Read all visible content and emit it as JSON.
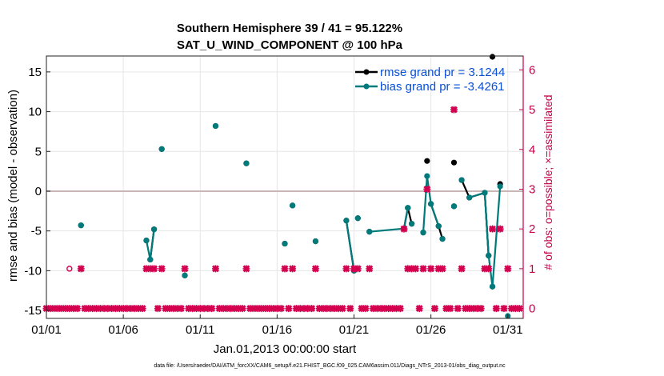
{
  "chart_data": {
    "type": "line",
    "title": "Southern Hemisphere 39 / 41 = 95.122%",
    "subtitle": "SAT_U_WIND_COMPONENT @ 100 hPa",
    "xlabel": "Jan.01,2013 00:00:00 start",
    "ylabel": "rmse and bias (model - observation)",
    "y2label": "# of obs: o=possible; ×=assimilated",
    "footnote": "data file: /Users/raeder/DAI/ATM_forcXX/CAM6_setup/f.e21.FHIST_BGC.f09_025.CAM6assim.011/Diags_NTrS_2013-01/obs_diag_output.nc",
    "xlim": [
      1,
      32
    ],
    "ylim": [
      -16,
      17
    ],
    "y2lim": [
      -0.25,
      6.35
    ],
    "x_ticks": [
      1,
      6,
      11,
      16,
      21,
      26,
      31
    ],
    "x_tick_labels": [
      "01/01",
      "01/06",
      "01/11",
      "01/16",
      "01/21",
      "01/26",
      "01/31"
    ],
    "y_ticks": [
      -15,
      -10,
      -5,
      0,
      5,
      10,
      15
    ],
    "y_tick_labels": [
      "-15",
      "-10",
      "-5",
      "0",
      "5",
      "10",
      "15"
    ],
    "y2_ticks": [
      0,
      1,
      2,
      3,
      4,
      5,
      6
    ],
    "y2_tick_labels": [
      "0",
      "1",
      "2",
      "3",
      "4",
      "5",
      "6"
    ],
    "zero_line": 0,
    "colors": {
      "rmse": "#000000",
      "bias": "#007a7a",
      "obs": "#d4004f",
      "right_axis": "#c4004a",
      "legend_text": "#0a4fd6",
      "zero_line": "#c9b7b7"
    },
    "series": [
      {
        "name": "rmse",
        "legend": "rmse grand pr = 3.1244",
        "points": [
          [
            3.25,
            -4.3
          ],
          [
            7.5,
            -6.2
          ],
          [
            7.75,
            -8.6
          ],
          [
            8.0,
            -4.8
          ],
          [
            8.5,
            5.3
          ],
          [
            10.0,
            -10.6
          ],
          [
            12.0,
            8.2
          ],
          [
            14.0,
            3.5
          ],
          [
            16.5,
            -6.6
          ],
          [
            17.0,
            -1.8
          ],
          [
            18.5,
            -6.3
          ],
          [
            20.5,
            -3.7
          ],
          [
            21.0,
            -10.0
          ],
          [
            21.25,
            -3.4
          ],
          [
            22.0,
            -5.1
          ],
          [
            24.25,
            -4.7
          ],
          [
            24.5,
            -2.1
          ],
          [
            24.75,
            -4.1
          ],
          [
            25.5,
            -5.2
          ],
          [
            25.75,
            3.8
          ],
          [
            26.0,
            -1.6
          ],
          [
            26.5,
            -4.4
          ],
          [
            26.75,
            -6.0
          ],
          [
            27.5,
            3.6
          ],
          [
            27.5,
            -1.9
          ],
          [
            28.0,
            1.4
          ],
          [
            28.5,
            -0.8
          ],
          [
            29.5,
            -0.2
          ],
          [
            29.75,
            -8.1
          ],
          [
            30.0,
            -12.0
          ],
          [
            30.0,
            16.9
          ],
          [
            30.5,
            0.9
          ]
        ],
        "segments": [
          [
            2,
            3
          ],
          [
            11,
            12
          ],
          [
            15,
            16,
            17
          ],
          [
            20,
            21,
            22
          ],
          [
            25,
            26,
            27,
            28
          ]
        ]
      },
      {
        "name": "bias",
        "legend": "bias grand pr = -3.4261",
        "points": [
          [
            3.25,
            -4.3
          ],
          [
            7.5,
            -6.2
          ],
          [
            7.75,
            -8.6
          ],
          [
            8.0,
            -4.8
          ],
          [
            8.5,
            5.3
          ],
          [
            10.0,
            -10.6
          ],
          [
            12.0,
            8.2
          ],
          [
            14.0,
            3.5
          ],
          [
            16.5,
            -6.6
          ],
          [
            17.0,
            -1.8
          ],
          [
            18.5,
            -6.3
          ],
          [
            20.5,
            -3.7
          ],
          [
            21.0,
            -10.0
          ],
          [
            21.25,
            -3.4
          ],
          [
            22.0,
            -5.1
          ],
          [
            24.25,
            -4.7
          ],
          [
            24.5,
            -2.1
          ],
          [
            24.75,
            -4.1
          ],
          [
            25.5,
            -5.2
          ],
          [
            25.75,
            1.9
          ],
          [
            26.0,
            -1.6
          ],
          [
            26.5,
            -4.4
          ],
          [
            26.75,
            -6.0
          ],
          [
            27.5,
            -1.9
          ],
          [
            28.0,
            1.4
          ],
          [
            28.5,
            -0.8
          ],
          [
            29.5,
            -0.2
          ],
          [
            29.75,
            -8.1
          ],
          [
            30.0,
            -12.0
          ],
          [
            30.5,
            0.6
          ],
          [
            31.0,
            -15.7
          ]
        ],
        "segments": [
          [
            1,
            2,
            3
          ],
          [
            11,
            12
          ],
          [
            14,
            15,
            16
          ],
          [
            18,
            19,
            20
          ],
          [
            20,
            21
          ],
          [
            25,
            26,
            27
          ],
          [
            26,
            27,
            28
          ],
          [
            28,
            29
          ]
        ]
      },
      {
        "name": "obs_assimilated",
        "axis": "right",
        "marker": "plus",
        "points": [
          [
            1.0,
            0
          ],
          [
            1.25,
            0
          ],
          [
            1.5,
            0
          ],
          [
            1.75,
            0
          ],
          [
            2.0,
            0
          ],
          [
            2.25,
            0
          ],
          [
            2.5,
            0
          ],
          [
            2.75,
            0
          ],
          [
            3.0,
            0
          ],
          [
            3.25,
            1
          ],
          [
            3.5,
            0
          ],
          [
            3.75,
            0
          ],
          [
            4.0,
            0
          ],
          [
            4.25,
            0
          ],
          [
            4.5,
            0
          ],
          [
            4.75,
            0
          ],
          [
            5.0,
            0
          ],
          [
            5.25,
            0
          ],
          [
            5.5,
            0
          ],
          [
            5.75,
            0
          ],
          [
            6.0,
            0
          ],
          [
            6.25,
            0
          ],
          [
            6.5,
            0
          ],
          [
            6.75,
            0
          ],
          [
            7.0,
            0
          ],
          [
            7.25,
            0
          ],
          [
            7.5,
            1
          ],
          [
            7.75,
            1
          ],
          [
            8.0,
            1
          ],
          [
            8.25,
            0
          ],
          [
            8.5,
            1
          ],
          [
            8.75,
            0
          ],
          [
            9.0,
            0
          ],
          [
            9.25,
            0
          ],
          [
            9.5,
            0
          ],
          [
            9.75,
            0
          ],
          [
            10.0,
            1
          ],
          [
            10.25,
            0
          ],
          [
            10.5,
            0
          ],
          [
            10.75,
            0
          ],
          [
            11.0,
            0
          ],
          [
            11.25,
            0
          ],
          [
            11.5,
            0
          ],
          [
            11.75,
            0
          ],
          [
            12.0,
            1
          ],
          [
            12.25,
            0
          ],
          [
            12.5,
            0
          ],
          [
            12.75,
            0
          ],
          [
            13.0,
            0
          ],
          [
            13.25,
            0
          ],
          [
            13.5,
            0
          ],
          [
            13.75,
            0
          ],
          [
            14.0,
            1
          ],
          [
            14.25,
            0
          ],
          [
            14.5,
            0
          ],
          [
            14.75,
            0
          ],
          [
            15.0,
            0
          ],
          [
            15.25,
            0
          ],
          [
            15.5,
            0
          ],
          [
            15.75,
            0
          ],
          [
            16.0,
            0
          ],
          [
            16.25,
            0
          ],
          [
            16.5,
            1
          ],
          [
            16.75,
            0
          ],
          [
            17.0,
            1
          ],
          [
            17.25,
            0
          ],
          [
            17.5,
            0
          ],
          [
            17.75,
            0
          ],
          [
            18.0,
            0
          ],
          [
            18.25,
            0
          ],
          [
            18.5,
            1
          ],
          [
            18.75,
            0
          ],
          [
            19.0,
            0
          ],
          [
            19.25,
            0
          ],
          [
            19.5,
            0
          ],
          [
            19.75,
            0
          ],
          [
            20.0,
            0
          ],
          [
            20.25,
            0
          ],
          [
            20.5,
            1
          ],
          [
            20.75,
            0
          ],
          [
            21.0,
            1
          ],
          [
            21.25,
            1
          ],
          [
            21.5,
            0
          ],
          [
            21.75,
            0
          ],
          [
            22.0,
            1
          ],
          [
            22.25,
            0
          ],
          [
            22.5,
            0
          ],
          [
            22.75,
            0
          ],
          [
            23.0,
            0
          ],
          [
            23.25,
            0
          ],
          [
            23.5,
            0
          ],
          [
            23.75,
            0
          ],
          [
            24.0,
            0
          ],
          [
            24.25,
            2
          ],
          [
            24.5,
            1
          ],
          [
            24.75,
            1
          ],
          [
            25.0,
            1
          ],
          [
            25.25,
            0
          ],
          [
            25.5,
            1
          ],
          [
            25.75,
            3
          ],
          [
            26.0,
            1
          ],
          [
            26.25,
            0
          ],
          [
            26.5,
            1
          ],
          [
            26.75,
            1
          ],
          [
            27.0,
            0
          ],
          [
            27.25,
            0
          ],
          [
            27.5,
            5
          ],
          [
            27.75,
            0
          ],
          [
            28.0,
            1
          ],
          [
            28.25,
            0
          ],
          [
            28.5,
            0
          ],
          [
            28.75,
            0
          ],
          [
            29.0,
            0
          ],
          [
            29.25,
            0
          ],
          [
            29.5,
            1
          ],
          [
            29.75,
            1
          ],
          [
            30.0,
            2
          ],
          [
            30.25,
            0
          ],
          [
            30.5,
            2
          ],
          [
            30.75,
            0
          ],
          [
            31.0,
            1
          ],
          [
            31.25,
            0
          ],
          [
            31.5,
            0
          ],
          [
            31.75,
            0
          ]
        ]
      },
      {
        "name": "obs_possible",
        "axis": "right",
        "marker": "open-circle",
        "points": [
          [
            2.5,
            1
          ]
        ]
      }
    ]
  }
}
